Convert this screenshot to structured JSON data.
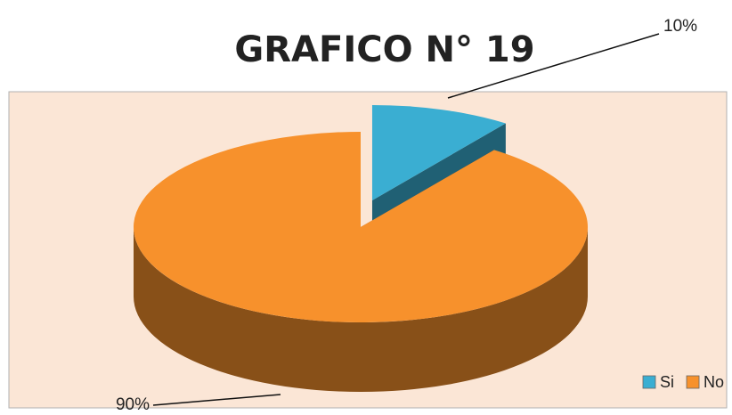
{
  "chart_data": {
    "type": "pie",
    "title": "GRAFICO N° 19",
    "categories": [
      "Si",
      "No"
    ],
    "values": [
      10,
      90
    ],
    "value_labels": [
      "10%",
      "90%"
    ],
    "colors": [
      "#3aaed2",
      "#f7912c"
    ],
    "legend": "bottom-right"
  }
}
